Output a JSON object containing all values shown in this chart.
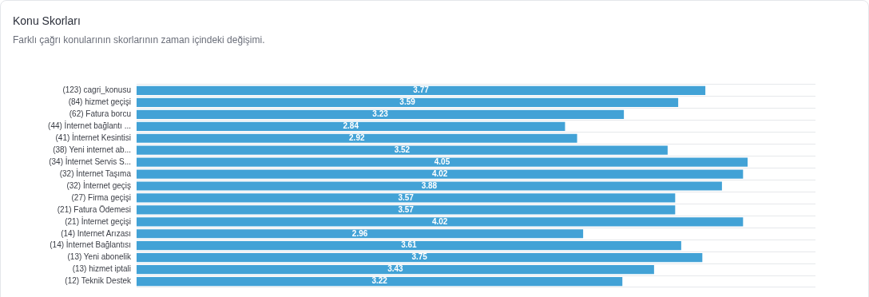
{
  "chart_data": {
    "type": "bar",
    "orientation": "horizontal",
    "title": "Konu Skorları",
    "subtitle": "Farklı çağrı konularının skorlarının zaman içindeki değişimi.",
    "categories": [
      "(123) cagri_konusu",
      "(84) hizmet geçişi",
      "(62) Fatura borcu",
      "(44) İnternet bağlantı ...",
      "(41) İnternet Kesintisi",
      "(38) Yeni internet ab...",
      "(34) İnternet Servis S...",
      "(32) İnternet Taşıma",
      "(32) İnternet geçiş",
      "(27) Firma geçişi",
      "(21) Fatura Ödemesi",
      "(21) İnternet geçişi",
      "(14) Internet Arızası",
      "(14) İnternet Bağlantısı",
      "(13) Yeni abonelik",
      "(13) hizmet iptali",
      "(12) Teknik Destek"
    ],
    "values": [
      3.77,
      3.59,
      3.23,
      2.84,
      2.92,
      3.52,
      4.05,
      4.02,
      3.88,
      3.57,
      3.57,
      4.02,
      2.96,
      3.61,
      3.75,
      3.43,
      3.22
    ],
    "color": "#42a2d6",
    "data_labels": true,
    "grid": "y",
    "legend": false,
    "tick_labels": "y"
  }
}
